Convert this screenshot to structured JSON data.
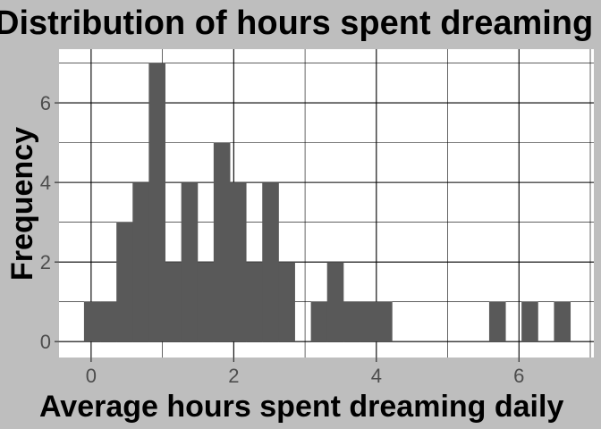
{
  "chart_data": {
    "type": "bar",
    "title": "Distribution of hours spent dreaming",
    "xlabel": "Average hours spent dreaming daily",
    "ylabel": "Frequency",
    "xlim": [
      -0.45,
      7.05
    ],
    "ylim": [
      -0.4,
      7.35
    ],
    "x_ticks": [
      0,
      2,
      4,
      6
    ],
    "y_ticks": [
      0,
      2,
      4,
      6
    ],
    "x_tick_labels": [
      "0",
      "2",
      "4",
      "6"
    ],
    "y_tick_labels": [
      "0",
      "2",
      "4",
      "6"
    ],
    "bin_width": 0.227,
    "bins": [
      {
        "start": -0.1,
        "count": 1
      },
      {
        "start": 0.127,
        "count": 1
      },
      {
        "start": 0.355,
        "count": 3
      },
      {
        "start": 0.582,
        "count": 4
      },
      {
        "start": 0.809,
        "count": 7
      },
      {
        "start": 1.036,
        "count": 2
      },
      {
        "start": 1.264,
        "count": 4
      },
      {
        "start": 1.491,
        "count": 2
      },
      {
        "start": 1.718,
        "count": 5
      },
      {
        "start": 1.945,
        "count": 4
      },
      {
        "start": 2.173,
        "count": 2
      },
      {
        "start": 2.4,
        "count": 4
      },
      {
        "start": 2.627,
        "count": 2
      },
      {
        "start": 3.082,
        "count": 1
      },
      {
        "start": 3.309,
        "count": 2
      },
      {
        "start": 3.536,
        "count": 1
      },
      {
        "start": 3.764,
        "count": 1
      },
      {
        "start": 3.991,
        "count": 1
      },
      {
        "start": 5.582,
        "count": 1
      },
      {
        "start": 6.036,
        "count": 1
      },
      {
        "start": 6.491,
        "count": 1
      }
    ],
    "grid": true,
    "colors": {
      "bar": "#595959",
      "panel": "#ffffff",
      "background": "#bebebe",
      "grid": "#000000",
      "tick_text": "#4d4d4d"
    }
  }
}
